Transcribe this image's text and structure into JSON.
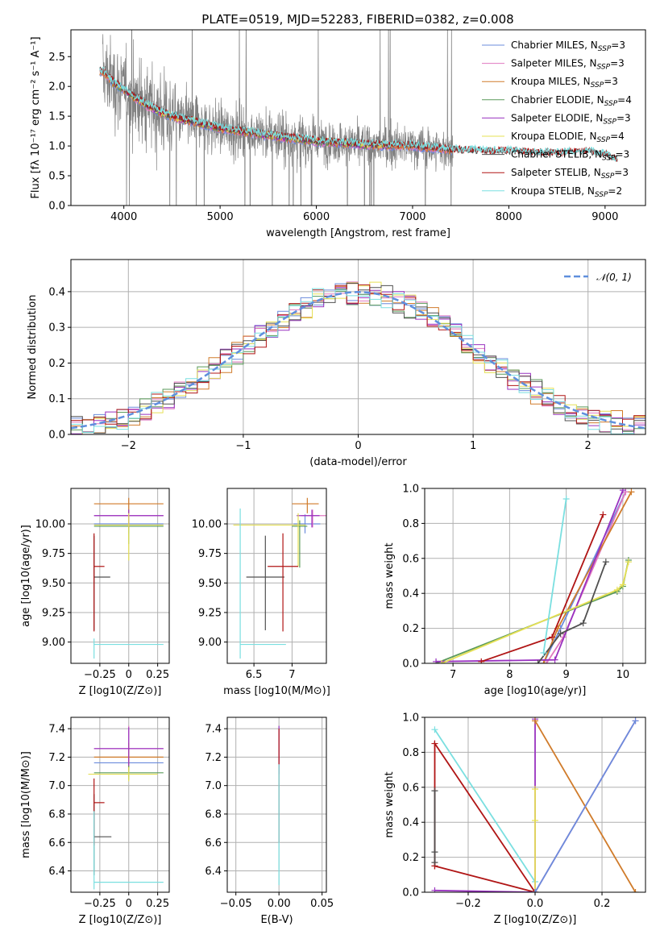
{
  "figure": {
    "title": "PLATE=0519, MJD=52283, FIBERID=0382, z=0.008"
  },
  "colors": {
    "data": "#808080",
    "models": [
      "#6b8cdc",
      "#e079c0",
      "#d07b2a",
      "#5a9a5a",
      "#9932c0",
      "#e6e055",
      "#505050",
      "#b01515",
      "#7adfe0"
    ],
    "gauss": "#5f8fdd",
    "grid": "#b0b0b0"
  },
  "chart_data": [
    {
      "id": "spectrum",
      "type": "line",
      "xlabel": "wavelength [Angstrom, rest frame]",
      "ylabel": "Flux [fλ 10⁻¹⁷ erg cm⁻² s⁻¹ A⁻¹]",
      "xlim": [
        3450,
        9420
      ],
      "ylim": [
        0,
        2.95
      ],
      "xticks": [
        4000,
        5000,
        6000,
        7000,
        8000,
        9000
      ],
      "yticks": [
        0.0,
        0.5,
        1.0,
        1.5,
        2.0,
        2.5
      ],
      "legend": "upper right",
      "series": [
        {
          "name": "Chabrier MILES, N_SSP=3",
          "label_main": "Chabrier MILES, N",
          "label_sub": "SSP",
          "label_tail": "=3",
          "span": [
            3750,
            7410
          ]
        },
        {
          "name": "Salpeter MILES, N_SSP=3",
          "label_main": "Salpeter MILES, N",
          "label_sub": "SSP",
          "label_tail": "=3",
          "span": [
            3750,
            7410
          ]
        },
        {
          "name": "Kroupa MILES, N_SSP=3",
          "label_main": "Kroupa MILES, N",
          "label_sub": "SSP",
          "label_tail": "=3",
          "span": [
            3750,
            7410
          ]
        },
        {
          "name": "Chabrier ELODIE, N_SSP=4",
          "label_main": "Chabrier ELODIE, N",
          "label_sub": "SSP",
          "label_tail": "=4",
          "span": [
            3900,
            6800
          ]
        },
        {
          "name": "Salpeter ELODIE, N_SSP=3",
          "label_main": "Salpeter ELODIE, N",
          "label_sub": "SSP",
          "label_tail": "=3",
          "span": [
            3900,
            6800
          ]
        },
        {
          "name": "Kroupa ELODIE, N_SSP=4",
          "label_main": "Kroupa ELODIE, N",
          "label_sub": "SSP",
          "label_tail": "=4",
          "span": [
            3900,
            6800
          ]
        },
        {
          "name": "Chabrier STELIB, N_SSP=3",
          "label_main": "Chabrier STELIB, N",
          "label_sub": "SSP",
          "label_tail": "=3",
          "span": [
            3750,
            9130
          ]
        },
        {
          "name": "Salpeter STELIB, N_SSP=3",
          "label_main": "Salpeter STELIB, N",
          "label_sub": "SSP",
          "label_tail": "=3",
          "span": [
            3750,
            9130
          ]
        },
        {
          "name": "Kroupa STELIB, N_SSP=2",
          "label_main": "Kroupa STELIB, N",
          "label_sub": "SSP",
          "label_tail": "=2",
          "span": [
            3750,
            9130
          ]
        }
      ],
      "continuum": {
        "x": [
          3780,
          3900,
          4000,
          4200,
          4400,
          4600,
          4800,
          5000,
          5500,
          6000,
          6500,
          7000,
          7500,
          8000,
          8500,
          8800,
          9000,
          9130
        ],
        "y": [
          2.25,
          2.05,
          1.95,
          1.72,
          1.55,
          1.45,
          1.38,
          1.3,
          1.18,
          1.08,
          1.02,
          1.0,
          0.92,
          0.9,
          0.87,
          0.9,
          0.85,
          0.75
        ]
      },
      "data_range": [
        3780,
        7420
      ]
    },
    {
      "id": "residuals",
      "type": "line",
      "xlabel": "(data-model)/error",
      "ylabel": "Normed distribution",
      "xlim": [
        -2.5,
        2.5
      ],
      "ylim": [
        0,
        0.49
      ],
      "xticks": [
        -2,
        -1,
        0,
        1,
        2
      ],
      "yticks": [
        0.0,
        0.1,
        0.2,
        0.3,
        0.4
      ],
      "legend": "upper right",
      "gaussian_label": "𝒩(0, 1)",
      "bin_width": 0.1
    },
    {
      "id": "age-vs-Z",
      "type": "scatter",
      "xlabel": "Z [log10(Z/Z⊙)]",
      "ylabel": "age  [log10(age/yr)]",
      "xlim": [
        -0.5,
        0.35
      ],
      "ylim": [
        8.82,
        10.3
      ],
      "xticks": [
        -0.25,
        0.0,
        0.25
      ],
      "yticks": [
        9.0,
        9.25,
        9.5,
        9.75,
        10.0
      ],
      "points": [
        {
          "model": 0,
          "x": 0.0,
          "y": 10.0,
          "xerr": [
            0.3,
            0.3
          ],
          "yerr": [
            0.08,
            0.08
          ]
        },
        {
          "model": 1,
          "x": 0.0,
          "y": 10.07,
          "xerr": [
            0.3,
            0.3
          ],
          "yerr": [
            0.1,
            0.05
          ]
        },
        {
          "model": 2,
          "x": 0.0,
          "y": 10.17,
          "xerr": [
            0.3,
            0.3
          ],
          "yerr": [
            0.08,
            0.05
          ]
        },
        {
          "model": 3,
          "x": 0.0,
          "y": 9.98,
          "xerr": [
            0.3,
            0.3
          ],
          "yerr": [
            0.15,
            0.1
          ]
        },
        {
          "model": 4,
          "x": 0.0,
          "y": 10.07,
          "xerr": [
            0.3,
            0.3
          ],
          "yerr": [
            0.1,
            0.05
          ]
        },
        {
          "model": 5,
          "x": 0.0,
          "y": 9.99,
          "xerr": [
            0.3,
            0.3
          ],
          "yerr": [
            0.3,
            0.1
          ]
        },
        {
          "model": 6,
          "x": -0.3,
          "y": 9.55,
          "xerr": [
            0.0,
            0.14
          ],
          "yerr": [
            0.45,
            0.35
          ]
        },
        {
          "model": 7,
          "x": -0.3,
          "y": 9.64,
          "xerr": [
            0.0,
            0.09
          ],
          "yerr": [
            0.55,
            0.28
          ]
        },
        {
          "model": 8,
          "x": -0.3,
          "y": 8.98,
          "xerr": [
            0.0,
            0.6
          ],
          "yerr": [
            0.12,
            0.05
          ]
        }
      ]
    },
    {
      "id": "age-vs-mass",
      "type": "scatter",
      "xlabel": "mass [log10(M/M⊙)]",
      "ylabel": "",
      "xlim": [
        6.15,
        7.45
      ],
      "ylim": [
        8.82,
        10.3
      ],
      "xticks": [
        6.5,
        7.0
      ],
      "yticks": [
        9.0,
        9.25,
        9.5,
        9.75,
        10.0
      ],
      "points": [
        {
          "model": 0,
          "x": 7.17,
          "y": 10.0,
          "xerr": [
            0.15,
            0.2
          ],
          "yerr": [
            0.08,
            0.08
          ]
        },
        {
          "model": 1,
          "x": 7.27,
          "y": 10.07,
          "xerr": [
            0.15,
            0.25
          ],
          "yerr": [
            0.1,
            0.05
          ]
        },
        {
          "model": 2,
          "x": 7.2,
          "y": 10.17,
          "xerr": [
            0.2,
            0.15
          ],
          "yerr": [
            0.08,
            0.05
          ]
        },
        {
          "model": 3,
          "x": 7.1,
          "y": 9.98,
          "xerr": [
            0.1,
            0.1
          ],
          "yerr": [
            0.35,
            0.05
          ]
        },
        {
          "model": 4,
          "x": 7.26,
          "y": 10.07,
          "xerr": [
            0.2,
            0.1
          ],
          "yerr": [
            0.1,
            0.05
          ]
        },
        {
          "model": 5,
          "x": 7.08,
          "y": 9.99,
          "xerr": [
            0.85,
            0.1
          ],
          "yerr": [
            0.35,
            0.1
          ]
        },
        {
          "model": 6,
          "x": 6.65,
          "y": 9.55,
          "xerr": [
            0.25,
            0.25
          ],
          "yerr": [
            0.45,
            0.35
          ]
        },
        {
          "model": 7,
          "x": 6.88,
          "y": 9.64,
          "xerr": [
            0.2,
            0.2
          ],
          "yerr": [
            0.55,
            0.28
          ]
        },
        {
          "model": 8,
          "x": 6.32,
          "y": 8.98,
          "xerr": [
            0.0,
            0.6
          ],
          "yerr": [
            0.12,
            1.15
          ]
        }
      ]
    },
    {
      "id": "weight-vs-age",
      "type": "line",
      "xlabel": "age  [log10(age/yr)]",
      "ylabel": "mass weight",
      "xlim": [
        6.5,
        10.4
      ],
      "ylim": [
        0,
        1.0
      ],
      "xticks": [
        7,
        8,
        9,
        10
      ],
      "yticks": [
        0.0,
        0.2,
        0.4,
        0.6,
        0.8,
        1.0
      ],
      "series": [
        {
          "model": 0,
          "x": [
            8.6,
            8.9,
            10.05
          ],
          "y": [
            0.0,
            0.2,
            0.98
          ]
        },
        {
          "model": 1,
          "x": [
            8.65,
            8.95,
            10.05
          ],
          "y": [
            0.0,
            0.15,
            0.98
          ]
        },
        {
          "model": 2,
          "x": [
            8.6,
            8.85,
            10.15
          ],
          "y": [
            0.0,
            0.2,
            0.98
          ]
        },
        {
          "model": 3,
          "x": [
            6.7,
            9.9,
            10.0,
            10.1
          ],
          "y": [
            0.0,
            0.41,
            0.44,
            0.59
          ]
        },
        {
          "model": 4,
          "x": [
            6.7,
            8.8,
            10.0
          ],
          "y": [
            0.01,
            0.02,
            0.99
          ]
        },
        {
          "model": 5,
          "x": [
            6.8,
            9.9,
            10.0,
            10.1
          ],
          "y": [
            0.0,
            0.42,
            0.45,
            0.58
          ]
        },
        {
          "model": 6,
          "x": [
            8.5,
            8.9,
            9.3,
            9.7
          ],
          "y": [
            0.0,
            0.17,
            0.23,
            0.58
          ]
        },
        {
          "model": 7,
          "x": [
            7.5,
            8.75,
            9.65
          ],
          "y": [
            0.01,
            0.15,
            0.85
          ]
        },
        {
          "model": 8,
          "x": [
            8.6,
            9.0
          ],
          "y": [
            0.06,
            0.94
          ]
        }
      ]
    },
    {
      "id": "mass-vs-Z",
      "type": "scatter",
      "xlabel": "Z [log10(Z/Z⊙)]",
      "ylabel": "mass [log10(M/M⊙)]",
      "xlim": [
        -0.5,
        0.35
      ],
      "ylim": [
        6.25,
        7.48
      ],
      "xticks": [
        -0.25,
        0.0,
        0.25
      ],
      "yticks": [
        6.4,
        6.6,
        6.8,
        7.0,
        7.2,
        7.4
      ],
      "points": [
        {
          "model": 0,
          "x": 0.0,
          "y": 7.16,
          "xerr": [
            0.3,
            0.3
          ],
          "yerr": [
            0.1,
            0.1
          ]
        },
        {
          "model": 1,
          "x": 0.0,
          "y": 7.26,
          "xerr": [
            0.3,
            0.3
          ],
          "yerr": [
            0.12,
            0.16
          ]
        },
        {
          "model": 2,
          "x": 0.0,
          "y": 7.2,
          "xerr": [
            0.3,
            0.3
          ],
          "yerr": [
            0.1,
            0.1
          ]
        },
        {
          "model": 3,
          "x": 0.0,
          "y": 7.09,
          "xerr": [
            0.3,
            0.3
          ],
          "yerr": [
            0.05,
            0.05
          ]
        },
        {
          "model": 4,
          "x": 0.0,
          "y": 7.26,
          "xerr": [
            0.3,
            0.3
          ],
          "yerr": [
            0.12,
            0.15
          ]
        },
        {
          "model": 5,
          "x": 0.0,
          "y": 7.08,
          "xerr": [
            0.35,
            0.25
          ],
          "yerr": [
            0.05,
            0.05
          ]
        },
        {
          "model": 6,
          "x": -0.3,
          "y": 6.64,
          "xerr": [
            0.0,
            0.15
          ],
          "yerr": [
            0.27,
            0.3
          ]
        },
        {
          "model": 7,
          "x": -0.3,
          "y": 6.88,
          "xerr": [
            0.0,
            0.09
          ],
          "yerr": [
            0.3,
            0.17
          ]
        },
        {
          "model": 8,
          "x": -0.3,
          "y": 6.32,
          "xerr": [
            0.0,
            0.6
          ],
          "yerr": [
            0.05,
            0.5
          ]
        }
      ]
    },
    {
      "id": "mass-vs-ebv",
      "type": "scatter",
      "xlabel": "E(B-V)",
      "ylabel": "",
      "xlim": [
        -0.06,
        0.055
      ],
      "ylim": [
        6.25,
        7.48
      ],
      "xticks": [
        -0.05,
        0.0,
        0.05
      ],
      "tick_labels": [
        "−0.05",
        "0.00",
        "0.05"
      ],
      "yticks": [
        6.4,
        6.6,
        6.8,
        7.0,
        7.2,
        7.4
      ],
      "points": [
        {
          "model": 4,
          "x": 0.0,
          "y": 7.25,
          "xerr": [
            0,
            0
          ],
          "yerr": [
            0.17,
            0.17
          ]
        },
        {
          "model": 7,
          "x": 0.0,
          "y": 7.0,
          "xerr": [
            0,
            0
          ],
          "yerr": [
            0.4,
            0.4
          ]
        },
        {
          "model": 8,
          "x": 0.0,
          "y": 6.75,
          "xerr": [
            0,
            0
          ],
          "yerr": [
            0.45,
            0.4
          ]
        }
      ]
    },
    {
      "id": "weight-vs-Z",
      "type": "line",
      "xlabel": "Z [log10(Z/Z⊙)]",
      "ylabel": "mass weight",
      "xlim": [
        -0.33,
        0.33
      ],
      "ylim": [
        0,
        1.0
      ],
      "xticks": [
        -0.2,
        0.0,
        0.2
      ],
      "tick_labels": [
        "−0.2",
        "0.0",
        "0.2"
      ],
      "yticks": [
        0.0,
        0.2,
        0.4,
        0.6,
        0.8,
        1.0
      ],
      "series": [
        {
          "model": 8,
          "x": [
            -0.3,
            0.0
          ],
          "y": [
            0.93,
            0.06
          ]
        },
        {
          "model": 7,
          "x": [
            -0.3,
            0.0,
            -0.3,
            -0.3
          ],
          "y": [
            0.15,
            0.0,
            0.85,
            0.15
          ]
        },
        {
          "model": 6,
          "x": [
            -0.3,
            -0.3,
            -0.3
          ],
          "y": [
            0.17,
            0.23,
            0.58
          ]
        },
        {
          "model": 4,
          "x": [
            -0.3,
            0.0,
            0.0
          ],
          "y": [
            0.01,
            0.0,
            0.99
          ]
        },
        {
          "model": 2,
          "x": [
            0.0,
            0.3
          ],
          "y": [
            0.98,
            0.0
          ]
        },
        {
          "model": 5,
          "x": [
            0.0,
            0.0,
            0.0
          ],
          "y": [
            0.0,
            0.41,
            0.59
          ]
        },
        {
          "model": 1,
          "x": [
            0.0,
            0.3
          ],
          "y": [
            0.0,
            0.98
          ]
        },
        {
          "model": 0,
          "x": [
            0.0,
            0.3
          ],
          "y": [
            0.0,
            0.98
          ]
        }
      ]
    }
  ]
}
